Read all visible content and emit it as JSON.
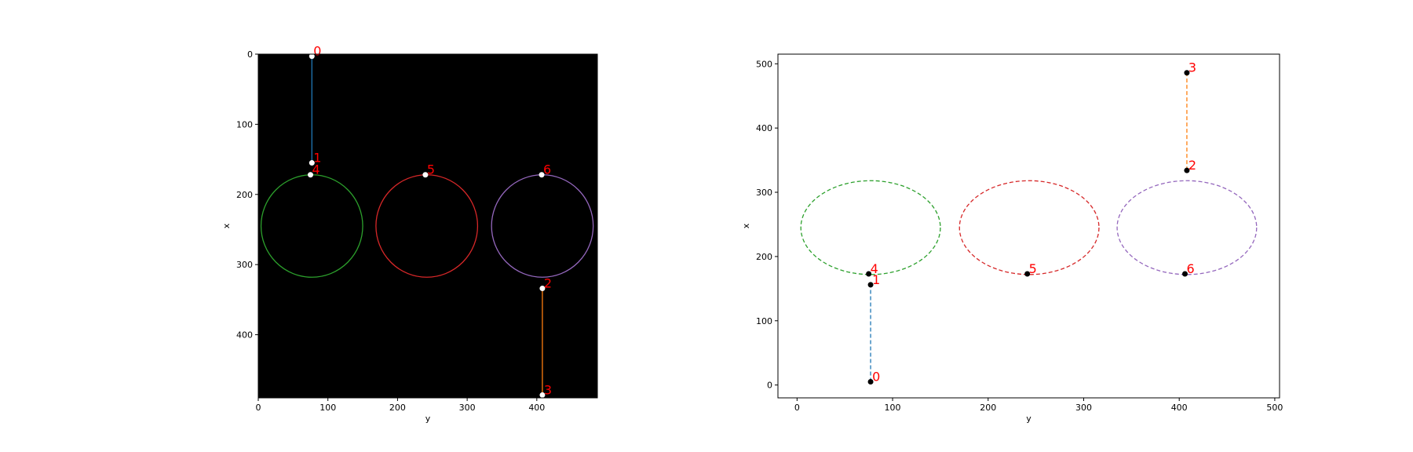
{
  "chart_data": [
    {
      "type": "scatter",
      "xlabel": "y",
      "ylabel": "x",
      "xlim": [
        0,
        487
      ],
      "ylim": [
        490,
        0
      ],
      "y_inverted": true,
      "background": "#000000",
      "grid": false,
      "x_ticks": [
        0,
        100,
        200,
        300,
        400
      ],
      "y_ticks": [
        0,
        100,
        200,
        300,
        400
      ],
      "point_color": "#ffffff",
      "points": [
        {
          "label": "0",
          "x": 77,
          "y": 3
        },
        {
          "label": "1",
          "x": 77,
          "y": 155
        },
        {
          "label": "2",
          "x": 408,
          "y": 334
        },
        {
          "label": "3",
          "x": 408,
          "y": 486
        },
        {
          "label": "4",
          "x": 75,
          "y": 172
        },
        {
          "label": "5",
          "x": 240,
          "y": 172
        },
        {
          "label": "6",
          "x": 407,
          "y": 172
        }
      ],
      "segments": [
        {
          "from": "0",
          "to": "1",
          "color": "#1f77b4"
        },
        {
          "from": "2",
          "to": "3",
          "color": "#ff7f0e"
        }
      ],
      "circles": [
        {
          "cx": 77,
          "cy": 245,
          "r": 73,
          "color": "#2ca02c"
        },
        {
          "cx": 242,
          "cy": 245,
          "r": 73,
          "color": "#d62728"
        },
        {
          "cx": 408,
          "cy": 245,
          "r": 73,
          "color": "#9467bd"
        }
      ]
    },
    {
      "type": "scatter",
      "xlabel": "y",
      "ylabel": "x",
      "xlim": [
        -20,
        505
      ],
      "ylim": [
        -20,
        515
      ],
      "background": "#ffffff",
      "grid": false,
      "x_ticks": [
        0,
        100,
        200,
        300,
        400,
        500
      ],
      "y_ticks": [
        0,
        100,
        200,
        300,
        400,
        500
      ],
      "point_color": "#000000",
      "points": [
        {
          "label": "0",
          "x": 77,
          "y": 5
        },
        {
          "label": "1",
          "x": 77,
          "y": 156
        },
        {
          "label": "2",
          "x": 408,
          "y": 334
        },
        {
          "label": "3",
          "x": 408,
          "y": 486
        },
        {
          "label": "4",
          "x": 75,
          "y": 173
        },
        {
          "label": "5",
          "x": 241,
          "y": 173
        },
        {
          "label": "6",
          "x": 406,
          "y": 173
        }
      ],
      "segments": [
        {
          "from": "0",
          "to": "1",
          "color": "#1f77b4",
          "dashed": true
        },
        {
          "from": "2",
          "to": "3",
          "color": "#ff7f0e",
          "dashed": true
        }
      ],
      "ellipses": [
        {
          "cx": 77,
          "cy": 245,
          "r": 73,
          "color": "#2ca02c",
          "dashed": true
        },
        {
          "cx": 243,
          "cy": 245,
          "r": 73,
          "color": "#d62728",
          "dashed": true
        },
        {
          "cx": 408,
          "cy": 245,
          "r": 73,
          "color": "#9467bd",
          "dashed": true
        }
      ]
    }
  ],
  "label_color": "#ff0000"
}
